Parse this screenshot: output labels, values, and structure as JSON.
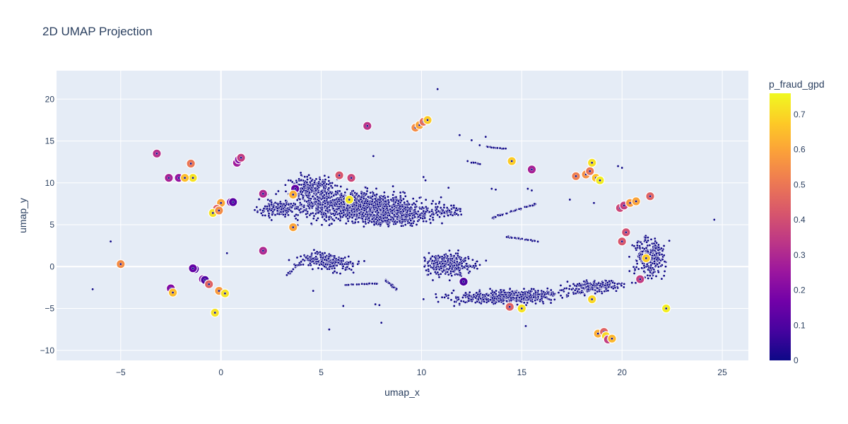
{
  "chart_data": {
    "type": "scatter",
    "title": "2D UMAP Projection",
    "xlabel": "umap_x",
    "ylabel": "umap_y",
    "xlim": [
      -8.2,
      26.3
    ],
    "ylim": [
      -11.2,
      23.4
    ],
    "x_ticks": [
      -5,
      0,
      5,
      10,
      15,
      20,
      25
    ],
    "y_ticks": [
      -10,
      -5,
      0,
      5,
      10,
      15,
      20
    ],
    "grid": true,
    "colorbar": {
      "title": "p_fraud_gpd",
      "min": 0,
      "max": 0.76,
      "ticks": [
        0,
        0.1,
        0.2,
        0.3,
        0.4,
        0.5,
        0.6,
        0.7
      ],
      "colorscale": [
        "#0d0887",
        "#46039f",
        "#7201a8",
        "#9c179e",
        "#bd3786",
        "#d8576b",
        "#ed7953",
        "#fb9f3a",
        "#fdca26",
        "#f0f921"
      ]
    },
    "highlight_points": [
      {
        "x": 7.3,
        "y": 16.8,
        "p": 0.33
      },
      {
        "x": 9.7,
        "y": 16.6,
        "p": 0.55
      },
      {
        "x": 9.9,
        "y": 16.9,
        "p": 0.6
      },
      {
        "x": 10.1,
        "y": 17.3,
        "p": 0.48
      },
      {
        "x": 10.3,
        "y": 17.5,
        "p": 0.68
      },
      {
        "x": -3.2,
        "y": 13.5,
        "p": 0.32
      },
      {
        "x": -1.5,
        "y": 12.3,
        "p": 0.5
      },
      {
        "x": -2.6,
        "y": 10.6,
        "p": 0.28
      },
      {
        "x": -2.1,
        "y": 10.6,
        "p": 0.24
      },
      {
        "x": -1.4,
        "y": 10.6,
        "p": 0.72
      },
      {
        "x": -1.8,
        "y": 10.6,
        "p": 0.65
      },
      {
        "x": 0.8,
        "y": 12.4,
        "p": 0.26
      },
      {
        "x": 0.9,
        "y": 12.8,
        "p": 0.2
      },
      {
        "x": 1.0,
        "y": 13.0,
        "p": 0.35
      },
      {
        "x": 2.1,
        "y": 8.7,
        "p": 0.3
      },
      {
        "x": 3.7,
        "y": 9.3,
        "p": 0.14
      },
      {
        "x": 3.6,
        "y": 8.6,
        "p": 0.62
      },
      {
        "x": 5.9,
        "y": 10.9,
        "p": 0.42
      },
      {
        "x": 6.5,
        "y": 10.6,
        "p": 0.38
      },
      {
        "x": 6.4,
        "y": 8.0,
        "p": 0.73
      },
      {
        "x": 0.5,
        "y": 7.7,
        "p": 0.16
      },
      {
        "x": 0.6,
        "y": 7.7,
        "p": 0.12
      },
      {
        "x": 0.0,
        "y": 7.6,
        "p": 0.6
      },
      {
        "x": -0.2,
        "y": 6.9,
        "p": 0.45
      },
      {
        "x": -0.4,
        "y": 6.4,
        "p": 0.72
      },
      {
        "x": -0.1,
        "y": 6.7,
        "p": 0.55
      },
      {
        "x": 3.6,
        "y": 4.7,
        "p": 0.6
      },
      {
        "x": 2.1,
        "y": 1.9,
        "p": 0.3
      },
      {
        "x": -5.0,
        "y": 0.3,
        "p": 0.55
      },
      {
        "x": -1.3,
        "y": -0.3,
        "p": 0.1
      },
      {
        "x": -1.4,
        "y": -0.2,
        "p": 0.14
      },
      {
        "x": -0.9,
        "y": -1.5,
        "p": 0.2
      },
      {
        "x": -0.8,
        "y": -1.6,
        "p": 0.1
      },
      {
        "x": -0.6,
        "y": -2.1,
        "p": 0.45
      },
      {
        "x": -2.5,
        "y": -2.6,
        "p": 0.2
      },
      {
        "x": -2.4,
        "y": -3.1,
        "p": 0.65
      },
      {
        "x": -0.1,
        "y": -2.9,
        "p": 0.58
      },
      {
        "x": 0.2,
        "y": -3.2,
        "p": 0.72
      },
      {
        "x": -0.3,
        "y": -5.5,
        "p": 0.72
      },
      {
        "x": 12.1,
        "y": -1.8,
        "p": 0.1
      },
      {
        "x": 14.5,
        "y": 12.6,
        "p": 0.68
      },
      {
        "x": 15.5,
        "y": 11.6,
        "p": 0.28
      },
      {
        "x": 17.7,
        "y": 10.8,
        "p": 0.52
      },
      {
        "x": 18.2,
        "y": 11.0,
        "p": 0.56
      },
      {
        "x": 18.4,
        "y": 11.4,
        "p": 0.5
      },
      {
        "x": 18.5,
        "y": 12.4,
        "p": 0.72
      },
      {
        "x": 18.7,
        "y": 10.6,
        "p": 0.66
      },
      {
        "x": 18.9,
        "y": 10.3,
        "p": 0.74
      },
      {
        "x": 19.9,
        "y": 7.0,
        "p": 0.38
      },
      {
        "x": 20.1,
        "y": 7.3,
        "p": 0.36
      },
      {
        "x": 20.4,
        "y": 7.6,
        "p": 0.58
      },
      {
        "x": 20.7,
        "y": 7.8,
        "p": 0.6
      },
      {
        "x": 21.4,
        "y": 8.4,
        "p": 0.45
      },
      {
        "x": 20.2,
        "y": 4.1,
        "p": 0.4
      },
      {
        "x": 20.0,
        "y": 3.0,
        "p": 0.42
      },
      {
        "x": 21.2,
        "y": 1.0,
        "p": 0.68
      },
      {
        "x": 20.9,
        "y": -1.5,
        "p": 0.35
      },
      {
        "x": 22.2,
        "y": -5.0,
        "p": 0.74
      },
      {
        "x": 18.8,
        "y": -8.0,
        "p": 0.62
      },
      {
        "x": 19.1,
        "y": -7.8,
        "p": 0.45
      },
      {
        "x": 19.2,
        "y": -8.3,
        "p": 0.7
      },
      {
        "x": 19.3,
        "y": -8.7,
        "p": 0.35
      },
      {
        "x": 19.5,
        "y": -8.6,
        "p": 0.64
      },
      {
        "x": 14.4,
        "y": -4.8,
        "p": 0.45
      },
      {
        "x": 15.0,
        "y": -5.0,
        "p": 0.72
      },
      {
        "x": 18.5,
        "y": -3.9,
        "p": 0.7
      }
    ],
    "isolated_points": [
      {
        "x": 10.8,
        "y": 21.2
      },
      {
        "x": 11.9,
        "y": 15.7
      },
      {
        "x": 12.5,
        "y": 15.1
      },
      {
        "x": 13.2,
        "y": 15.5
      },
      {
        "x": 12.9,
        "y": 14.5
      },
      {
        "x": 13.3,
        "y": 14.3
      },
      {
        "x": 13.6,
        "y": 14.2
      },
      {
        "x": 14.2,
        "y": 14.1
      },
      {
        "x": 7.6,
        "y": 13.2
      },
      {
        "x": -5.5,
        "y": 3.0
      },
      {
        "x": -6.4,
        "y": -2.7
      },
      {
        "x": 24.6,
        "y": 5.6
      },
      {
        "x": 17.4,
        "y": 8.0
      },
      {
        "x": 18.6,
        "y": 7.6
      },
      {
        "x": 13.5,
        "y": 9.3
      },
      {
        "x": 13.7,
        "y": 9.2
      },
      {
        "x": 15.3,
        "y": 9.3
      },
      {
        "x": 15.5,
        "y": 9.1
      },
      {
        "x": 5.4,
        "y": -7.5
      },
      {
        "x": 8.0,
        "y": -6.7
      },
      {
        "x": 4.6,
        "y": -2.9
      },
      {
        "x": 0.3,
        "y": 1.6
      },
      {
        "x": 15.2,
        "y": -7.1
      },
      {
        "x": 18.6,
        "y": 12.1
      },
      {
        "x": 19.8,
        "y": 12.0
      },
      {
        "x": 20.0,
        "y": 11.8
      },
      {
        "x": 10.1,
        "y": 10.7
      },
      {
        "x": 10.2,
        "y": 10.3
      },
      {
        "x": 12.3,
        "y": 12.6
      },
      {
        "x": 12.6,
        "y": 12.4
      },
      {
        "x": 7.7,
        "y": -4.5
      },
      {
        "x": 7.9,
        "y": -4.6
      },
      {
        "x": 6.1,
        "y": -4.7
      }
    ]
  }
}
